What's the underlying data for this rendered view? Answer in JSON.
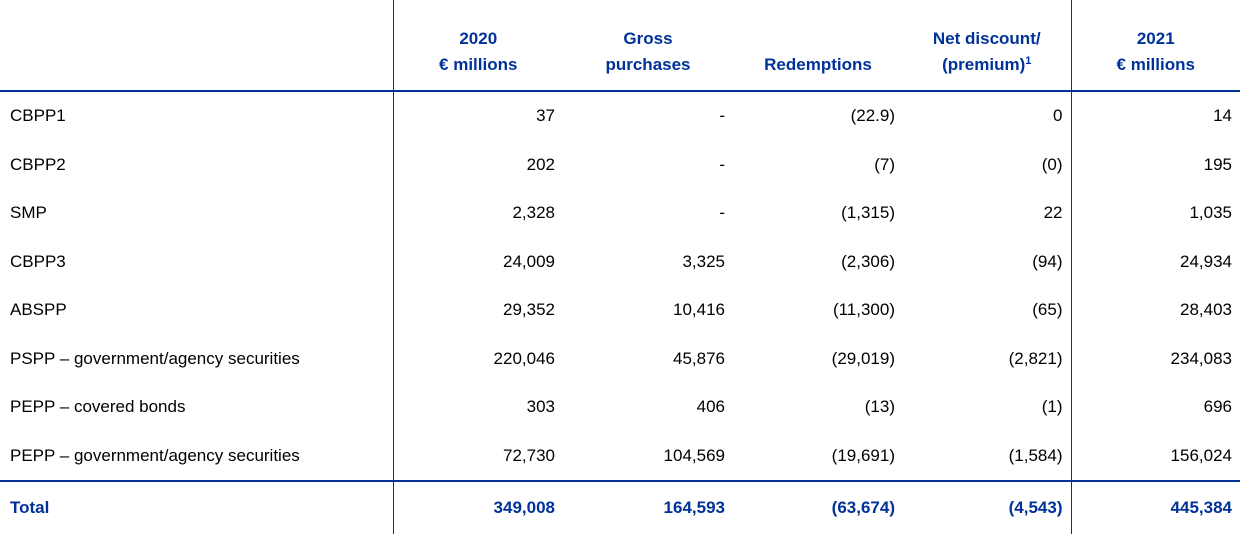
{
  "table": {
    "headers": [
      {
        "lines": [
          "2020",
          "€ millions"
        ]
      },
      {
        "lines": [
          "Gross",
          "purchases"
        ]
      },
      {
        "lines": [
          "Redemptions"
        ]
      },
      {
        "lines": [
          "Net discount/",
          "(premium)"
        ],
        "note": "1"
      },
      {
        "lines": [
          "2021",
          "€ millions"
        ]
      }
    ],
    "rows": [
      {
        "label": "CBPP1",
        "values": [
          "37",
          "-",
          "(22.9)",
          "0",
          "14"
        ]
      },
      {
        "label": "CBPP2",
        "values": [
          "202",
          "-",
          "(7)",
          "(0)",
          "195"
        ]
      },
      {
        "label": "SMP",
        "values": [
          "2,328",
          "-",
          "(1,315)",
          "22",
          "1,035"
        ]
      },
      {
        "label": "CBPP3",
        "values": [
          "24,009",
          "3,325",
          "(2,306)",
          "(94)",
          "24,934"
        ]
      },
      {
        "label": "ABSPP",
        "values": [
          "29,352",
          "10,416",
          "(11,300)",
          "(65)",
          "28,403"
        ]
      },
      {
        "label": "PSPP – government/agency securities",
        "values": [
          "220,046",
          "45,876",
          "(29,019)",
          "(2,821)",
          "234,083"
        ]
      },
      {
        "label": "PEPP – covered bonds",
        "values": [
          "303",
          "406",
          "(13)",
          "(1)",
          "696"
        ]
      },
      {
        "label": "PEPP – government/agency securities",
        "values": [
          "72,730",
          "104,569",
          "(19,691)",
          "(1,584)",
          "156,024"
        ]
      }
    ],
    "total": {
      "label": "Total",
      "values": [
        "349,008",
        "164,593",
        "(63,674)",
        "(4,543)",
        "445,384"
      ]
    }
  }
}
